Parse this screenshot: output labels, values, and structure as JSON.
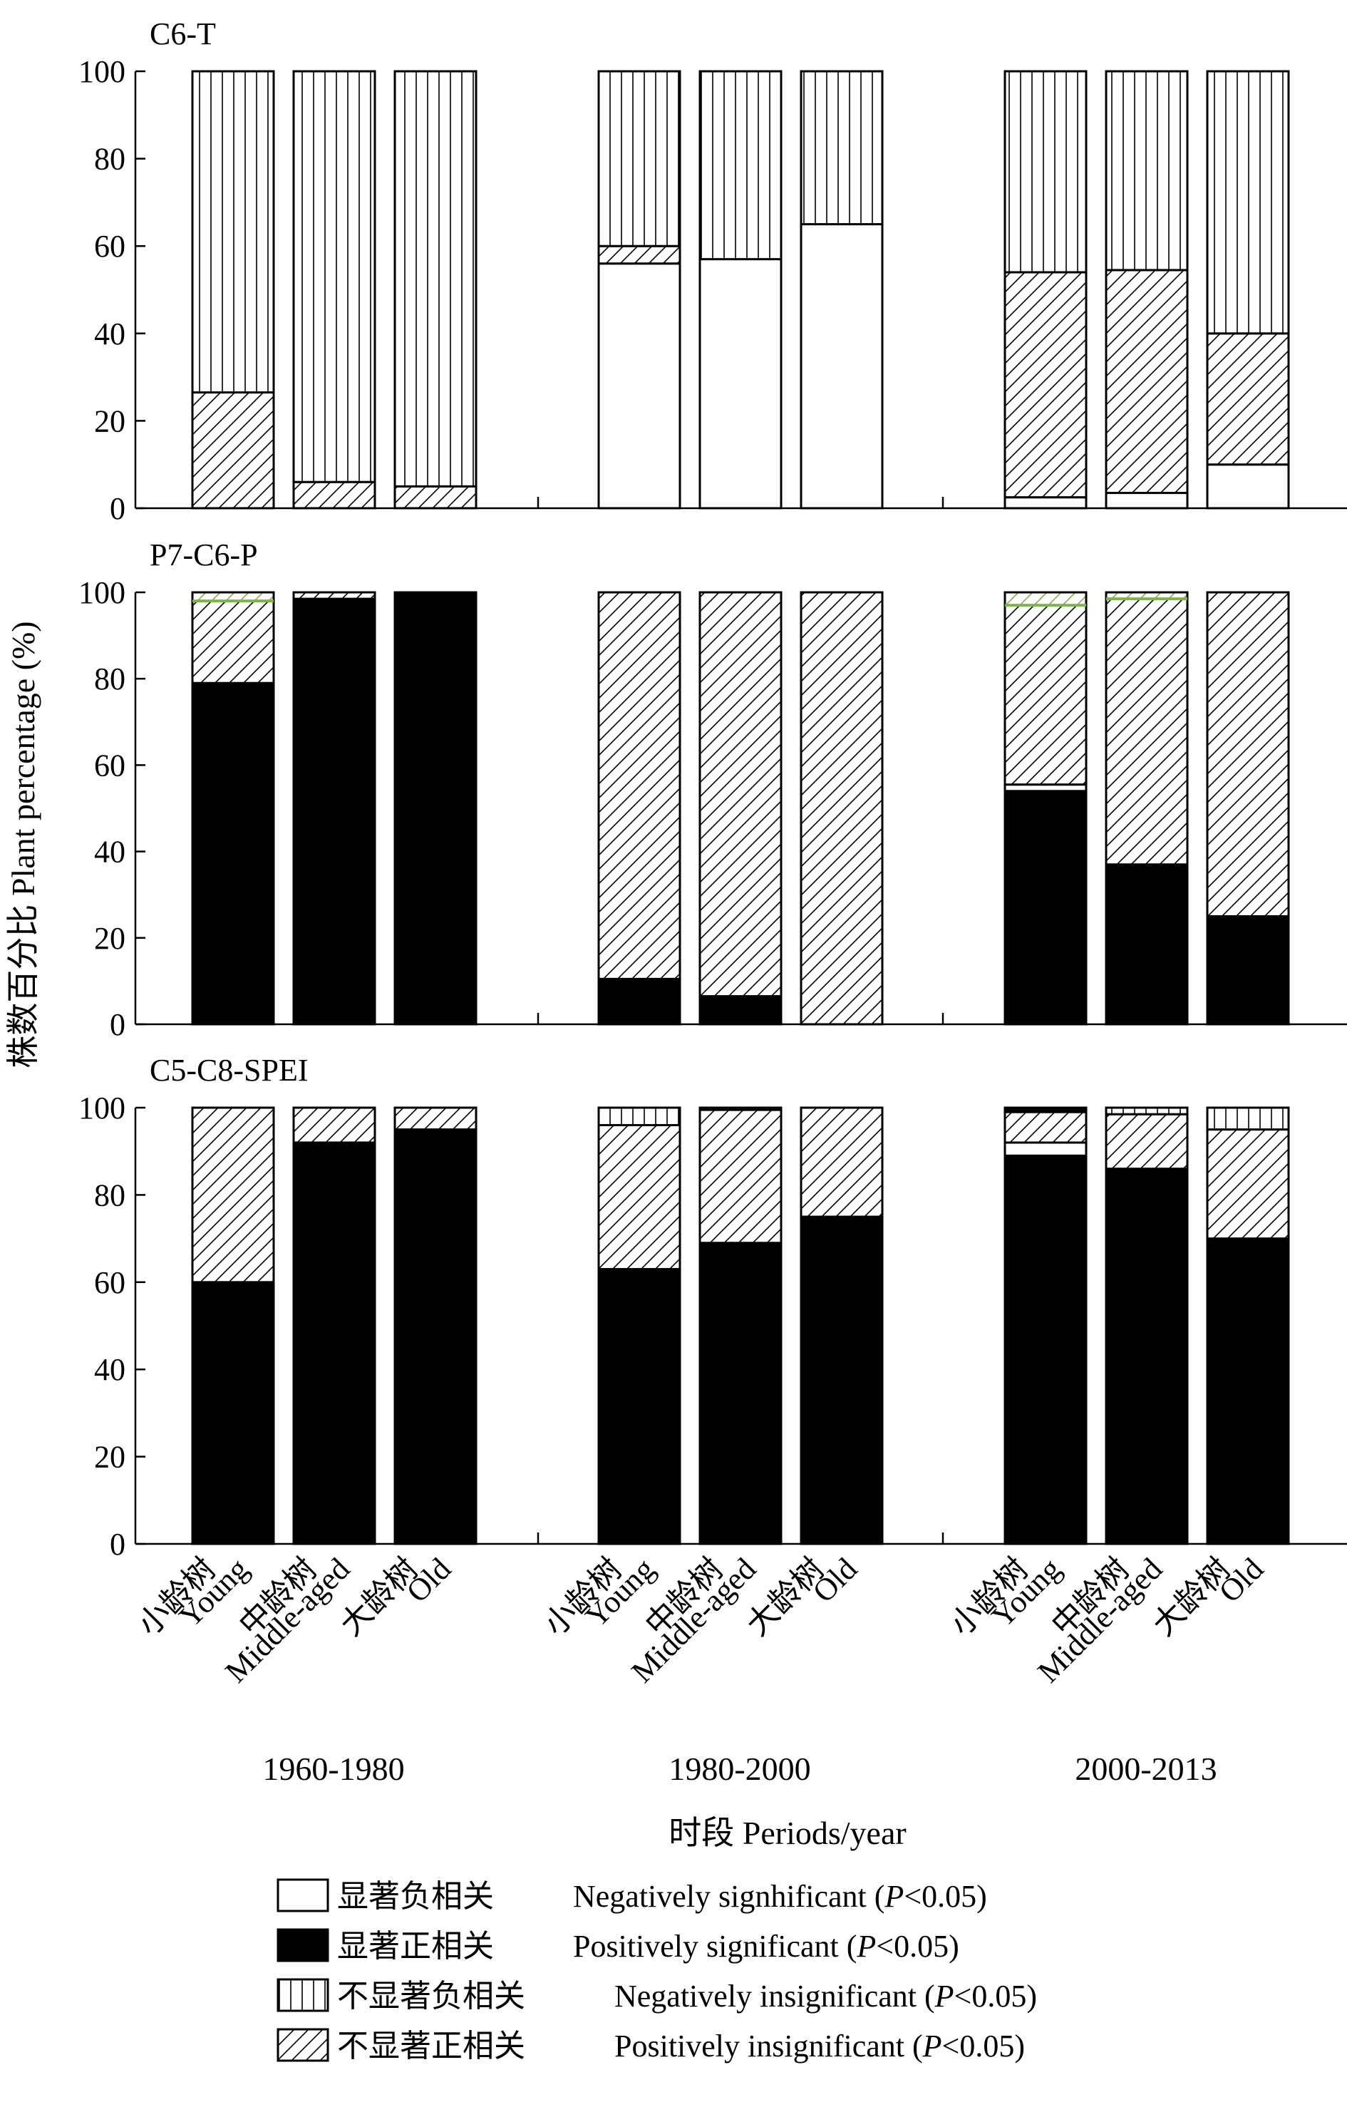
{
  "chart_data": {
    "type": "bar",
    "stacked": true,
    "ylabel": "株数百分比  Plant percentage (%)",
    "xlabel": "时段  Periods/year",
    "ylim": [
      0,
      100
    ],
    "yticks": [
      0,
      20,
      40,
      60,
      80,
      100
    ],
    "periods": [
      "1960-1980",
      "1980-2000",
      "2000-2013"
    ],
    "age_classes": [
      {
        "zh": "小龄树",
        "en": "Young"
      },
      {
        "zh": "中龄树",
        "en": "Middle-aged"
      },
      {
        "zh": "大龄树",
        "en": "Old"
      }
    ],
    "legend": [
      {
        "key": "neg_sig",
        "zh": "显著负相关",
        "en": "Negatively signhificant",
        "suffix_pre": "(",
        "suffix_p": "P",
        "suffix_post": "<0.05)"
      },
      {
        "key": "pos_sig",
        "zh": "显著正相关",
        "en": "Positively significant",
        "suffix_pre": "(",
        "suffix_p": "P",
        "suffix_post": "<0.05)"
      },
      {
        "key": "neg_insig",
        "zh": "不显著负相关",
        "en": "Negatively insignificant",
        "suffix_pre": "(",
        "suffix_p": "P",
        "suffix_post": "<0.05)"
      },
      {
        "key": "pos_insig",
        "zh": "不显著正相关",
        "en": "Positively insignificant",
        "suffix_pre": "(",
        "suffix_p": "P",
        "suffix_post": "<0.05)"
      }
    ],
    "panels": [
      {
        "label": "C6-T",
        "bars": [
          {
            "period": "1960-1980",
            "age": "Young",
            "pos_sig": 0,
            "neg_sig": 0,
            "pos_insig": 26.5,
            "neg_insig": 73.5
          },
          {
            "period": "1960-1980",
            "age": "Middle-aged",
            "pos_sig": 0,
            "neg_sig": 0,
            "pos_insig": 6,
            "neg_insig": 94
          },
          {
            "period": "1960-1980",
            "age": "Old",
            "pos_sig": 0,
            "neg_sig": 0,
            "pos_insig": 5,
            "neg_insig": 95
          },
          {
            "period": "1980-2000",
            "age": "Young",
            "pos_sig": 0,
            "neg_sig": 56,
            "pos_insig": 4,
            "neg_insig": 40
          },
          {
            "period": "1980-2000",
            "age": "Middle-aged",
            "pos_sig": 0,
            "neg_sig": 57,
            "pos_insig": 0,
            "neg_insig": 43
          },
          {
            "period": "1980-2000",
            "age": "Old",
            "pos_sig": 0,
            "neg_sig": 65,
            "pos_insig": 0,
            "neg_insig": 35
          },
          {
            "period": "2000-2013",
            "age": "Young",
            "pos_sig": 0,
            "neg_sig": 2.5,
            "pos_insig": 51.5,
            "neg_insig": 46
          },
          {
            "period": "2000-2013",
            "age": "Middle-aged",
            "pos_sig": 0,
            "neg_sig": 3.5,
            "pos_insig": 51,
            "neg_insig": 45.5
          },
          {
            "period": "2000-2013",
            "age": "Old",
            "pos_sig": 0,
            "neg_sig": 10,
            "pos_insig": 30,
            "neg_insig": 60
          }
        ]
      },
      {
        "label": "P7-C6-P",
        "bars": [
          {
            "period": "1960-1980",
            "age": "Young",
            "pos_sig": 79,
            "neg_sig": 0,
            "pos_insig": 19,
            "neg_insig": 0,
            "green_hatch": 2
          },
          {
            "period": "1960-1980",
            "age": "Middle-aged",
            "pos_sig": 98.5,
            "neg_sig": 0,
            "pos_insig": 1.5,
            "neg_insig": 0
          },
          {
            "period": "1960-1980",
            "age": "Old",
            "pos_sig": 100,
            "neg_sig": 0,
            "pos_insig": 0,
            "neg_insig": 0
          },
          {
            "period": "1980-2000",
            "age": "Young",
            "pos_sig": 10.5,
            "neg_sig": 0,
            "pos_insig": 89.5,
            "neg_insig": 0
          },
          {
            "period": "1980-2000",
            "age": "Middle-aged",
            "pos_sig": 6.5,
            "neg_sig": 0,
            "pos_insig": 93.5,
            "neg_insig": 0
          },
          {
            "period": "1980-2000",
            "age": "Old",
            "pos_sig": 0,
            "neg_sig": 0,
            "pos_insig": 100,
            "neg_insig": 0
          },
          {
            "period": "2000-2013",
            "age": "Young",
            "pos_sig": 54,
            "neg_sig": 1.5,
            "pos_insig": 41.5,
            "neg_insig": 0,
            "green_hatch": 3
          },
          {
            "period": "2000-2013",
            "age": "Middle-aged",
            "pos_sig": 37,
            "neg_sig": 0,
            "pos_insig": 61.5,
            "neg_insig": 0,
            "green_hatch": 1.5
          },
          {
            "period": "2000-2013",
            "age": "Old",
            "pos_sig": 25,
            "neg_sig": 0,
            "pos_insig": 75,
            "neg_insig": 0
          }
        ]
      },
      {
        "label": "C5-C8-SPEI",
        "bars": [
          {
            "period": "1960-1980",
            "age": "Young",
            "pos_sig": 60,
            "neg_sig": 0,
            "pos_insig": 40,
            "neg_insig": 0
          },
          {
            "period": "1960-1980",
            "age": "Middle-aged",
            "pos_sig": 92,
            "neg_sig": 0,
            "pos_insig": 8,
            "neg_insig": 0
          },
          {
            "period": "1960-1980",
            "age": "Old",
            "pos_sig": 95,
            "neg_sig": 0,
            "pos_insig": 5,
            "neg_insig": 0
          },
          {
            "period": "1980-2000",
            "age": "Young",
            "pos_sig": 63,
            "neg_sig": 0,
            "pos_insig": 33,
            "neg_insig": 4
          },
          {
            "period": "1980-2000",
            "age": "Middle-aged",
            "pos_sig": 69,
            "neg_sig": 0,
            "pos_insig": 30.5,
            "neg_insig": 0.5
          },
          {
            "period": "1980-2000",
            "age": "Old",
            "pos_sig": 75,
            "neg_sig": 0,
            "pos_insig": 25,
            "neg_insig": 0
          },
          {
            "period": "2000-2013",
            "age": "Young",
            "pos_sig": 89,
            "neg_sig": 3,
            "pos_insig": 7,
            "neg_insig": 0,
            "top_pos_sig": 1
          },
          {
            "period": "2000-2013",
            "age": "Middle-aged",
            "pos_sig": 86,
            "neg_sig": 0,
            "pos_insig": 12.5,
            "neg_insig": 1.5
          },
          {
            "period": "2000-2013",
            "age": "Old",
            "pos_sig": 70,
            "neg_sig": 0,
            "pos_insig": 25,
            "neg_insig": 5
          }
        ]
      }
    ]
  }
}
